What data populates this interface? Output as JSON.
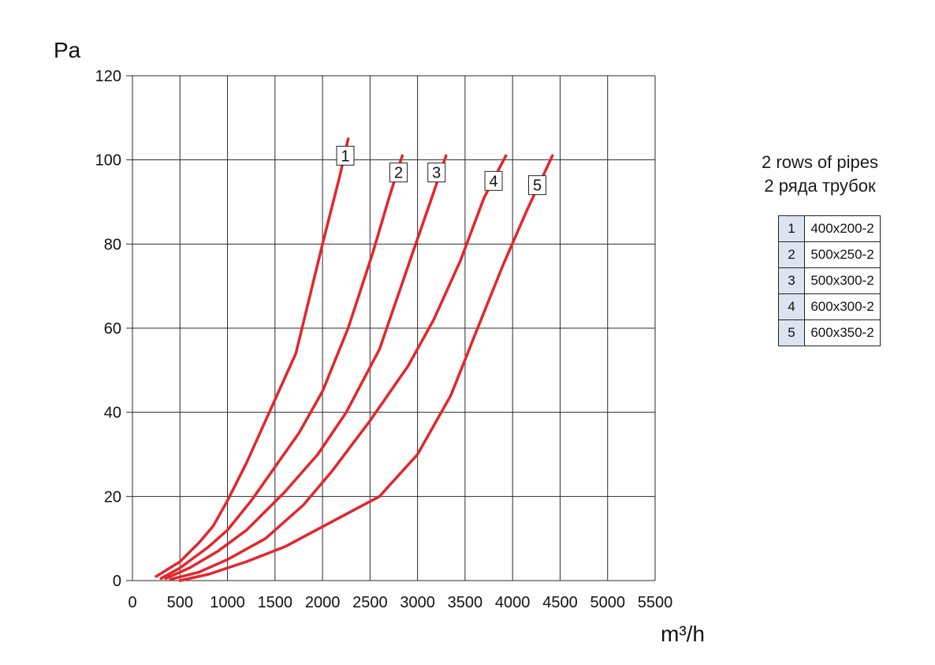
{
  "chart_data": {
    "type": "line",
    "ylabel": "Pa",
    "xlabel": "m³/h",
    "xlim": [
      0,
      5500
    ],
    "ylim": [
      0,
      120
    ],
    "xticks": [
      0,
      500,
      1000,
      1500,
      2000,
      2500,
      3000,
      3500,
      4000,
      4500,
      5000,
      5500
    ],
    "yticks": [
      0,
      20,
      40,
      60,
      80,
      100,
      120
    ],
    "grid": true,
    "line_color": "#e3262b",
    "series": [
      {
        "name": "1",
        "label_at": [
          2240,
          101
        ],
        "points": [
          [
            250,
            1
          ],
          [
            500,
            4.5
          ],
          [
            700,
            9
          ],
          [
            850,
            13
          ],
          [
            1000,
            19
          ],
          [
            1200,
            28
          ],
          [
            1400,
            38
          ],
          [
            1720,
            54
          ],
          [
            2000,
            80
          ],
          [
            2180,
            96
          ],
          [
            2270,
            105
          ]
        ]
      },
      {
        "name": "2",
        "label_at": [
          2800,
          97
        ],
        "points": [
          [
            300,
            0.5
          ],
          [
            500,
            3
          ],
          [
            800,
            8
          ],
          [
            1000,
            12
          ],
          [
            1250,
            19
          ],
          [
            1500,
            27
          ],
          [
            1750,
            35
          ],
          [
            2000,
            45
          ],
          [
            2270,
            60
          ],
          [
            2530,
            78
          ],
          [
            2700,
            91
          ],
          [
            2840,
            101
          ]
        ]
      },
      {
        "name": "3",
        "label_at": [
          3200,
          97
        ],
        "points": [
          [
            350,
            0.5
          ],
          [
            600,
            3
          ],
          [
            900,
            7
          ],
          [
            1200,
            12
          ],
          [
            1600,
            21
          ],
          [
            1950,
            30
          ],
          [
            2250,
            40
          ],
          [
            2600,
            55
          ],
          [
            2950,
            78
          ],
          [
            3150,
            91
          ],
          [
            3300,
            101
          ]
        ]
      },
      {
        "name": "4",
        "label_at": [
          3800,
          95
        ],
        "points": [
          [
            400,
            0.3
          ],
          [
            700,
            2
          ],
          [
            1000,
            5
          ],
          [
            1400,
            10
          ],
          [
            1800,
            18
          ],
          [
            2100,
            26
          ],
          [
            2500,
            38
          ],
          [
            2900,
            51
          ],
          [
            3170,
            62
          ],
          [
            3450,
            76
          ],
          [
            3700,
            91
          ],
          [
            3930,
            101
          ]
        ]
      },
      {
        "name": "5",
        "label_at": [
          4260,
          94
        ],
        "points": [
          [
            500,
            0
          ],
          [
            800,
            1.5
          ],
          [
            1200,
            4.5
          ],
          [
            1600,
            8
          ],
          [
            2100,
            14
          ],
          [
            2600,
            20
          ],
          [
            3000,
            30
          ],
          [
            3350,
            44
          ],
          [
            3650,
            61
          ],
          [
            3900,
            75
          ],
          [
            4150,
            88
          ],
          [
            4420,
            101
          ]
        ]
      }
    ]
  },
  "legend": {
    "title_en": "2 rows of pipes",
    "title_ru": "2 ряда трубок",
    "rows": [
      {
        "num": "1",
        "name": "400x200-2"
      },
      {
        "num": "2",
        "name": "500x250-2"
      },
      {
        "num": "3",
        "name": "500x300-2"
      },
      {
        "num": "4",
        "name": "600x300-2"
      },
      {
        "num": "5",
        "name": "600x350-2"
      }
    ]
  }
}
